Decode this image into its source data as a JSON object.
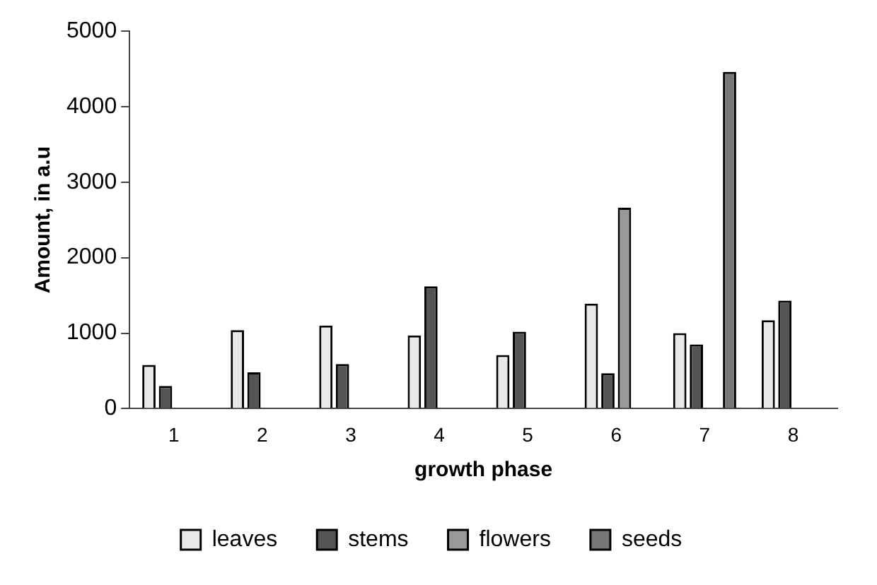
{
  "chart_data": {
    "type": "bar",
    "xlabel": "growth phase",
    "ylabel": "Amount, in a.u",
    "categories": [
      "1",
      "2",
      "3",
      "4",
      "5",
      "6",
      "7",
      "8"
    ],
    "series": [
      {
        "name": "leaves",
        "color": "#e8e8e8",
        "values": [
          580,
          1040,
          1100,
          970,
          710,
          1390,
          1000,
          1170
        ]
      },
      {
        "name": "stems",
        "color": "#555555",
        "values": [
          300,
          480,
          590,
          1620,
          1020,
          470,
          850,
          1430
        ]
      },
      {
        "name": "flowers",
        "color": "#999999",
        "values": [
          null,
          null,
          null,
          null,
          null,
          2660,
          null,
          null
        ]
      },
      {
        "name": "seeds",
        "color": "#777777",
        "values": [
          null,
          null,
          null,
          null,
          null,
          null,
          4460,
          null
        ]
      }
    ],
    "ylim": [
      0,
      5000
    ],
    "yticks": [
      0,
      1000,
      2000,
      3000,
      4000,
      5000
    ],
    "grid": false,
    "legend": "bottom"
  }
}
